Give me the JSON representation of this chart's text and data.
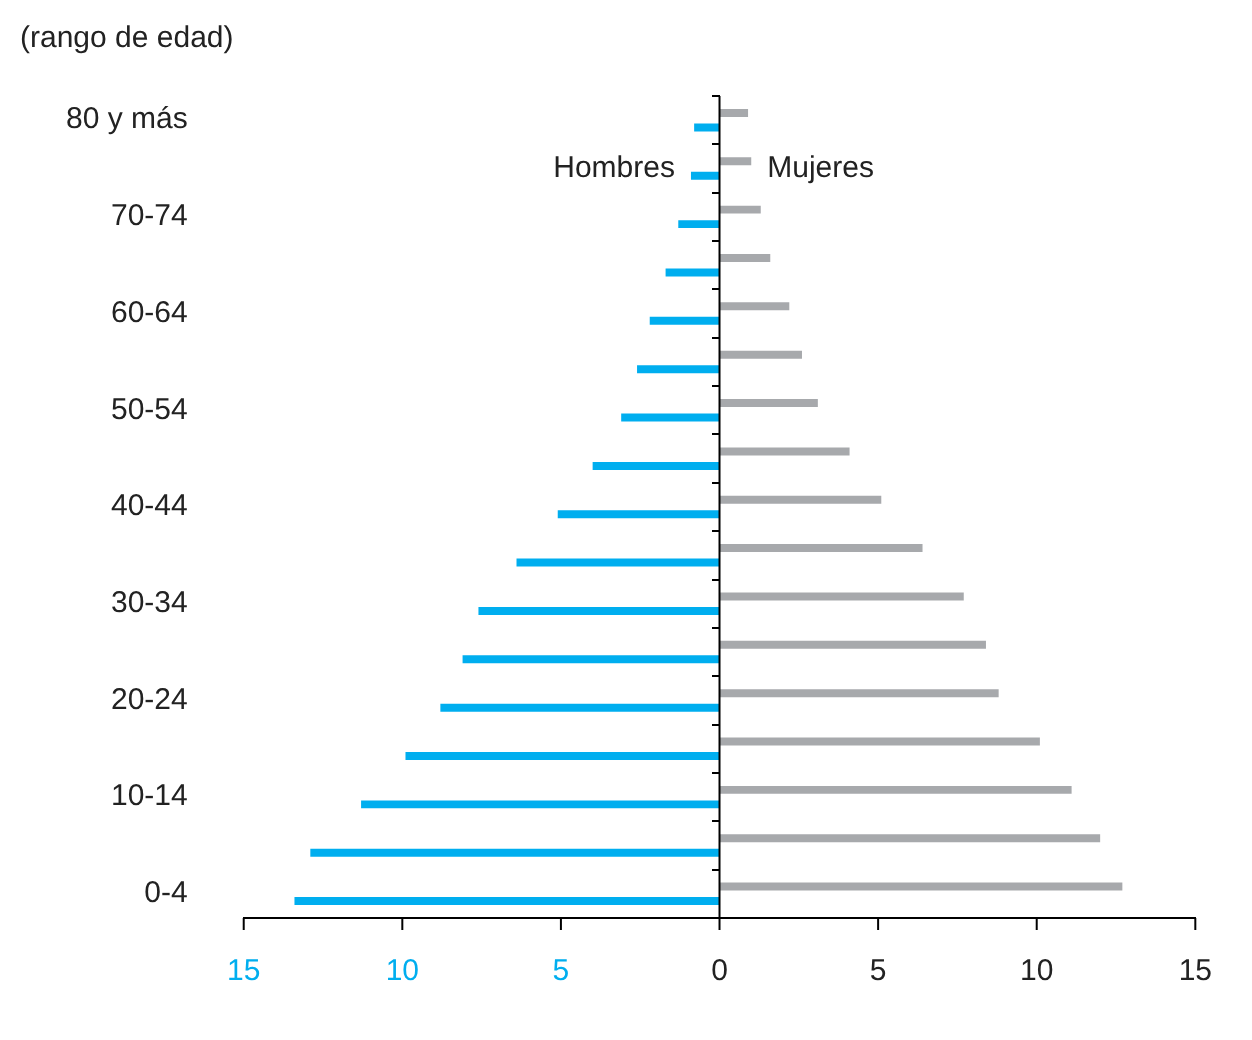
{
  "chart_data": {
    "type": "bar",
    "orientation": "horizontal",
    "ylabel": "(rango de edad)",
    "categories": [
      "80 y más",
      null,
      "70-74",
      null,
      "60-64",
      null,
      "50-54",
      null,
      "40-44",
      null,
      "30-34",
      null,
      "20-24",
      null,
      "10-14",
      null,
      "0-4"
    ],
    "series": [
      {
        "name": "Mujeres",
        "color": "#a7a9ac",
        "values": [
          0.9,
          1.0,
          1.3,
          1.6,
          2.2,
          2.6,
          3.1,
          4.1,
          5.1,
          6.4,
          7.7,
          8.4,
          8.8,
          10.1,
          11.1,
          12.0,
          12.7
        ]
      },
      {
        "name": "Hombres",
        "color": "#00aeef",
        "values": [
          -0.8,
          -0.9,
          -1.3,
          -1.7,
          -2.2,
          -2.6,
          -3.1,
          -4.0,
          -5.1,
          -6.4,
          -7.6,
          -8.1,
          -8.8,
          -9.9,
          -11.3,
          -12.9,
          -13.4
        ]
      }
    ],
    "xlim": [
      -15,
      15
    ],
    "xticks": [
      {
        "value": -15,
        "label": "15"
      },
      {
        "value": -10,
        "label": "10"
      },
      {
        "value": -5,
        "label": "5"
      },
      0,
      5,
      10,
      15
    ],
    "ref_lines": [
      {
        "axis": "x",
        "value": 0,
        "color": "#000000"
      }
    ],
    "grid": false,
    "legend": false
  }
}
